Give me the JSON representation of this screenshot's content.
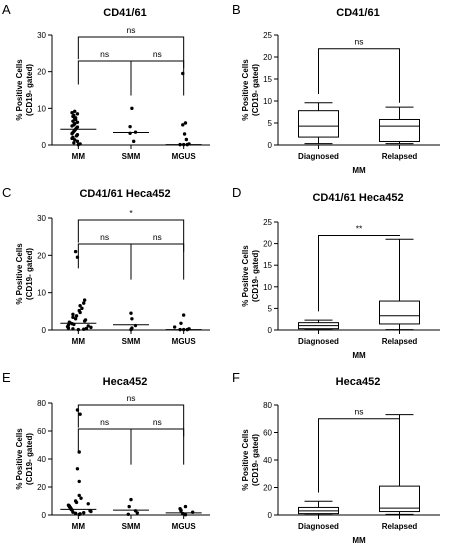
{
  "chart_data": [
    {
      "panel": "A",
      "title": "CD41/61",
      "type": "scatter",
      "ylabel": "% Positive Cells\n(CD19- gated)",
      "ylim": [
        0,
        30
      ],
      "yticks": [
        0,
        10,
        20,
        30
      ],
      "categories": [
        "MM",
        "SMM",
        "MGUS"
      ],
      "points": [
        [
          9.2,
          8.8,
          8.5,
          8.1,
          7.8,
          7.4,
          7.1,
          6.9,
          6.5,
          6.2,
          5.8,
          5.5,
          5.2,
          4.9,
          4.6,
          4.3,
          4.0,
          3.7,
          3.4,
          3.1,
          2.8,
          2.5,
          2.1,
          1.8,
          1.4,
          1.0,
          0.6,
          0.3,
          0.1
        ],
        [
          10.0,
          5.0,
          3.5,
          3.2,
          1.0
        ],
        [
          19.5,
          6.0,
          5.5,
          3.0,
          1.5,
          0.3,
          0.1,
          0.1,
          0.1
        ]
      ],
      "medians": [
        4.3,
        3.4,
        0.1
      ],
      "brackets": [
        {
          "from": 0,
          "to": 2,
          "label": "ns"
        },
        {
          "from": 0,
          "to": 1,
          "label": "ns"
        },
        {
          "from": 1,
          "to": 2,
          "label": "ns"
        }
      ]
    },
    {
      "panel": "B",
      "title": "CD41/61",
      "type": "box",
      "ylabel": "% Positive Cells\n(CD19- gated)",
      "ylim": [
        0,
        25
      ],
      "yticks": [
        0,
        5,
        10,
        15,
        20,
        25
      ],
      "categories": [
        "Diagnosed",
        "Relapsed"
      ],
      "xlabel": "MM",
      "boxes": [
        {
          "min": 0.3,
          "q1": 1.8,
          "median": 4.3,
          "q3": 7.8,
          "max": 9.6
        },
        {
          "min": 0.3,
          "q1": 0.8,
          "median": 4.3,
          "q3": 5.8,
          "max": 8.6
        }
      ],
      "brackets": [
        {
          "from": 0,
          "to": 1,
          "label": "ns"
        }
      ]
    },
    {
      "panel": "C",
      "title": "CD41/61 Heca452",
      "type": "scatter",
      "ylabel": "% Positive Cells\n(CD19- gated)",
      "ylim": [
        0,
        30
      ],
      "yticks": [
        0,
        10,
        20,
        30
      ],
      "categories": [
        "MM",
        "SMM",
        "MGUS"
      ],
      "points": [
        [
          21.0,
          19.5,
          8.0,
          7.2,
          6.5,
          5.8,
          5.2,
          4.7,
          4.2,
          3.8,
          3.4,
          3.0,
          2.7,
          2.4,
          2.1,
          1.9,
          1.7,
          1.5,
          1.3,
          1.1,
          0.9,
          0.7,
          0.5,
          0.4,
          0.3,
          0.2,
          0.1
        ],
        [
          4.5,
          3.0,
          1.2,
          0.5,
          0.1
        ],
        [
          4.0,
          1.8,
          0.8,
          0.3,
          0.1,
          0.1,
          0.1
        ]
      ],
      "medians": [
        1.8,
        1.4,
        0.1
      ],
      "brackets": [
        {
          "from": 0,
          "to": 2,
          "label": "*"
        },
        {
          "from": 0,
          "to": 1,
          "label": "ns"
        },
        {
          "from": 1,
          "to": 2,
          "label": "ns"
        }
      ]
    },
    {
      "panel": "D",
      "title": "CD41/61 Heca452",
      "type": "box",
      "ylabel": "% Positive Cells\n(CD19- gated)",
      "ylim": [
        0,
        25
      ],
      "yticks": [
        0,
        5,
        10,
        15,
        20,
        25
      ],
      "categories": [
        "Diagnosed",
        "Relapsed"
      ],
      "xlabel": "MM",
      "boxes": [
        {
          "min": 0.1,
          "q1": 0.3,
          "median": 1.0,
          "q3": 1.7,
          "max": 2.3
        },
        {
          "min": 0.1,
          "q1": 1.4,
          "median": 3.3,
          "q3": 6.7,
          "max": 21.0
        }
      ],
      "brackets": [
        {
          "from": 0,
          "to": 1,
          "label": "**"
        }
      ]
    },
    {
      "panel": "E",
      "title": "Heca452",
      "type": "scatter",
      "ylabel": "% Positive Cells\n(CD19- gated)",
      "ylim": [
        0,
        80
      ],
      "yticks": [
        0,
        20,
        40,
        60,
        80
      ],
      "categories": [
        "MM",
        "SMM",
        "MGUS"
      ],
      "points": [
        [
          75,
          72,
          45,
          33,
          24,
          14,
          12,
          10,
          9,
          8,
          7,
          6.5,
          6,
          5.5,
          5,
          4.5,
          4,
          3.5,
          3,
          2.5,
          2,
          1.6,
          1.2,
          0.8,
          0.4
        ],
        [
          11,
          6,
          3,
          1.5,
          0.5
        ],
        [
          6,
          4.5,
          3.5,
          3,
          2,
          1,
          0.5,
          0.2
        ]
      ],
      "medians": [
        4,
        3.5,
        1.5
      ],
      "brackets": [
        {
          "from": 0,
          "to": 2,
          "label": "ns"
        },
        {
          "from": 0,
          "to": 1,
          "label": "ns"
        },
        {
          "from": 1,
          "to": 2,
          "label": "ns"
        }
      ]
    },
    {
      "panel": "F",
      "title": "Heca452",
      "type": "box",
      "ylabel": "% Positive Cells\n(CD19- gated)",
      "ylim": [
        0,
        80
      ],
      "yticks": [
        0,
        20,
        40,
        60,
        80
      ],
      "categories": [
        "Diagnosed",
        "Relapsed"
      ],
      "xlabel": "MM",
      "boxes": [
        {
          "min": 0.2,
          "q1": 1.0,
          "median": 3.0,
          "q3": 5.5,
          "max": 10.0
        },
        {
          "min": 0.5,
          "q1": 2.5,
          "median": 5.0,
          "q3": 21.0,
          "max": 73.0
        }
      ],
      "brackets": [
        {
          "from": 0,
          "to": 1,
          "label": "ns"
        }
      ]
    }
  ]
}
